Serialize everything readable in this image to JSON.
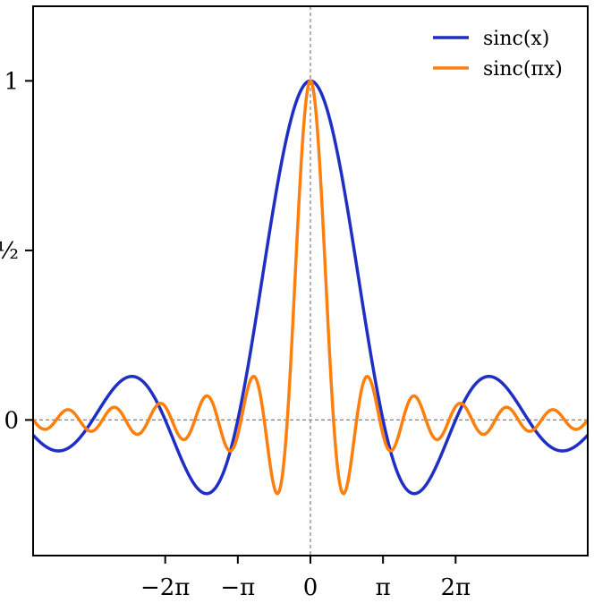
{
  "chart_data": {
    "type": "line",
    "title": "",
    "xlabel": "",
    "ylabel": "",
    "xlim": [
      -12.0,
      12.0
    ],
    "ylim": [
      -0.4,
      1.22
    ],
    "x_ticks": [
      {
        "value": -6.283185,
        "label": "−2π"
      },
      {
        "value": -3.141593,
        "label": "−π"
      },
      {
        "value": 0,
        "label": "0"
      },
      {
        "value": 3.141593,
        "label": "π"
      },
      {
        "value": 6.283185,
        "label": "2π"
      }
    ],
    "y_ticks": [
      {
        "value": 0,
        "label": "0"
      },
      {
        "value": 0.5,
        "label": "½"
      },
      {
        "value": 1,
        "label": "1"
      }
    ],
    "reference_lines": {
      "horizontal": [
        0
      ],
      "vertical": [
        0
      ]
    },
    "grid": false,
    "legend_position": "top-right",
    "series": [
      {
        "name": "sinc(x)",
        "function": "sin(x)/x",
        "color": "#1f2fc4"
      },
      {
        "name": "sinc(πx)",
        "function": "sin(πx)/(πx)",
        "color": "#ff7f0e"
      }
    ]
  }
}
